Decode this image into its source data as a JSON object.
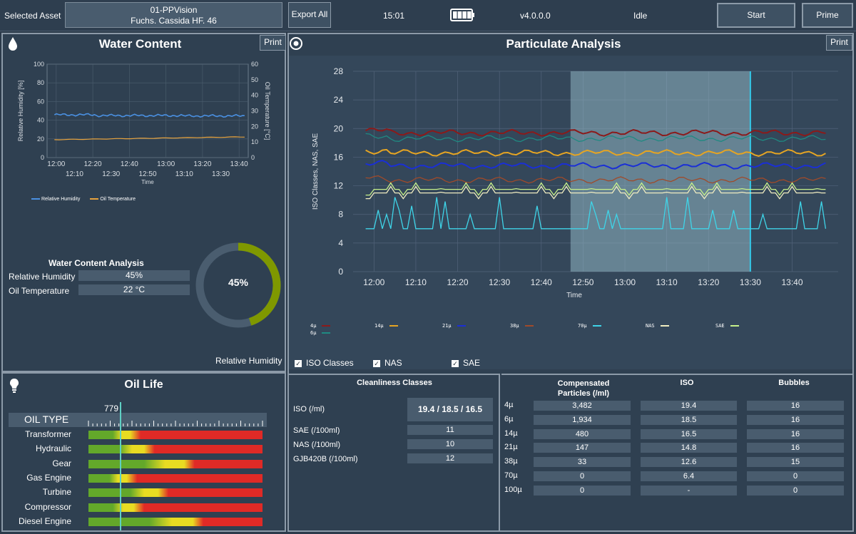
{
  "topbar": {
    "selected_asset_label": "Selected Asset",
    "asset_line1": "01-PPVision",
    "asset_line2": "Fuchs. Cassida HF. 46",
    "export_label": "Export All",
    "time": "15:01",
    "battery_level": 1.0,
    "version": "v4.0.0.0",
    "status": "Idle",
    "start_label": "Start",
    "prime_label": "Prime"
  },
  "water": {
    "title": "Water Content",
    "print_label": "Print",
    "chart_data": {
      "type": "line",
      "xlabel": "Time",
      "ylabel": "Relative Humidity [%]",
      "y2label": "Oil Temperature [°C]",
      "ylim": [
        0,
        100
      ],
      "y2lim": [
        0,
        60
      ],
      "yticks": [
        "0",
        "20",
        "40",
        "60",
        "80",
        "100"
      ],
      "y2ticks": [
        "0",
        "10",
        "20",
        "30",
        "40",
        "50",
        "60"
      ],
      "xticks_top": [
        "12:00",
        "12:20",
        "12:40",
        "13:00",
        "13:20",
        "13:40"
      ],
      "xticks_bottom": [
        "12:10",
        "12:30",
        "12:50",
        "13:10",
        "13:30"
      ],
      "series": [
        {
          "name": "Relative Humidity",
          "color": "#4a90e2",
          "axis": "left",
          "x_range": [
            "11:59",
            "13:43"
          ],
          "approx_value": 45
        },
        {
          "name": "Oil Temperature",
          "color": "#e8a33d",
          "axis": "right",
          "x_range": [
            "11:59",
            "13:43"
          ],
          "start": 11.5,
          "end": 13.3
        }
      ]
    },
    "analysis_title": "Water Content Analysis",
    "rh_label": "Relative Humidity",
    "rh_value": "45%",
    "temp_label": "Oil Temperature",
    "temp_value": "22 °C",
    "gauge_value": 45,
    "gauge_text": "45%",
    "gauge_caption": "Relative Humidity"
  },
  "oil": {
    "title": "Oil Life",
    "marker_value": "779",
    "marker_fraction": 0.179,
    "header": "OIL TYPE",
    "types": [
      {
        "name": "Transformer",
        "g": 0.14,
        "y": 0.24
      },
      {
        "name": "Hydraulic",
        "g": 0.18,
        "y": 0.32
      },
      {
        "name": "Gear",
        "g": 0.32,
        "y": 0.55
      },
      {
        "name": "Gas Engine",
        "g": 0.12,
        "y": 0.22
      },
      {
        "name": "Turbine",
        "g": 0.24,
        "y": 0.4
      },
      {
        "name": "Compressor",
        "g": 0.14,
        "y": 0.26
      },
      {
        "name": "Diesel Engine",
        "g": 0.35,
        "y": 0.6
      }
    ]
  },
  "particulate": {
    "title": "Particulate Analysis",
    "print_label": "Print",
    "chart_data": {
      "type": "line",
      "ylabel": "ISO Classes, NAS, SAE",
      "xlabel": "Time",
      "ylim": [
        0,
        28
      ],
      "yticks": [
        "0",
        "4",
        "8",
        "12",
        "16",
        "20",
        "24",
        "28"
      ],
      "xticks": [
        "12:00",
        "12:10",
        "12:20",
        "12:30",
        "12:40",
        "12:50",
        "13:00",
        "13:10",
        "13:20",
        "13:30",
        "13:40"
      ],
      "x_range": [
        "11:58",
        "13:48"
      ],
      "highlight_range": [
        "12:47",
        "13:30"
      ],
      "series": [
        {
          "name": "4µ",
          "color": "#8b1a1a",
          "approx_value": 19.4
        },
        {
          "name": "6µ",
          "color": "#1f8a82",
          "approx_value": 18.6
        },
        {
          "name": "14µ",
          "color": "#e6a523",
          "approx_value": 16.6
        },
        {
          "name": "21µ",
          "color": "#1a2fd6",
          "approx_value": 14.8
        },
        {
          "name": "38µ",
          "color": "#a04a2a",
          "approx_value": 12.8
        },
        {
          "name": "70µ",
          "color": "#3fd4e8",
          "approx_value": 6.0
        },
        {
          "name": "NAS",
          "color": "#f0ecc0",
          "approx_value": 11.0
        },
        {
          "name": "SAE",
          "color": "#c6f08a",
          "approx_value": 11.5
        }
      ]
    },
    "checkboxes": [
      {
        "label": "ISO Classes",
        "checked": "✓"
      },
      {
        "label": "NAS",
        "checked": "✓"
      },
      {
        "label": "SAE",
        "checked": "✓"
      }
    ],
    "cleanliness": {
      "title": "Cleanliness Classes",
      "rows": [
        {
          "label": "ISO (/ml)",
          "value": "19.4 / 18.5 / 16.5"
        },
        {
          "label": "SAE (/100ml)",
          "value": "11"
        },
        {
          "label": "NAS (/100ml)",
          "value": "10"
        },
        {
          "label": "GJB420B (/100ml)",
          "value": "12"
        }
      ]
    },
    "counts": {
      "headers": [
        "Compensated\nParticles (/ml)",
        "ISO",
        "Bubbles"
      ],
      "rows": [
        {
          "size": "4µ",
          "particles": "3,482",
          "iso": "19.4",
          "bubbles": "16"
        },
        {
          "size": "6µ",
          "particles": "1,934",
          "iso": "18.5",
          "bubbles": "16"
        },
        {
          "size": "14µ",
          "particles": "480",
          "iso": "16.5",
          "bubbles": "16"
        },
        {
          "size": "21µ",
          "particles": "147",
          "iso": "14.8",
          "bubbles": "16"
        },
        {
          "size": "38µ",
          "particles": "33",
          "iso": "12.6",
          "bubbles": "15"
        },
        {
          "size": "70µ",
          "particles": "0",
          "iso": "6.4",
          "bubbles": "0"
        },
        {
          "size": "100µ",
          "particles": "0",
          "iso": "-",
          "bubbles": "0"
        }
      ]
    }
  }
}
